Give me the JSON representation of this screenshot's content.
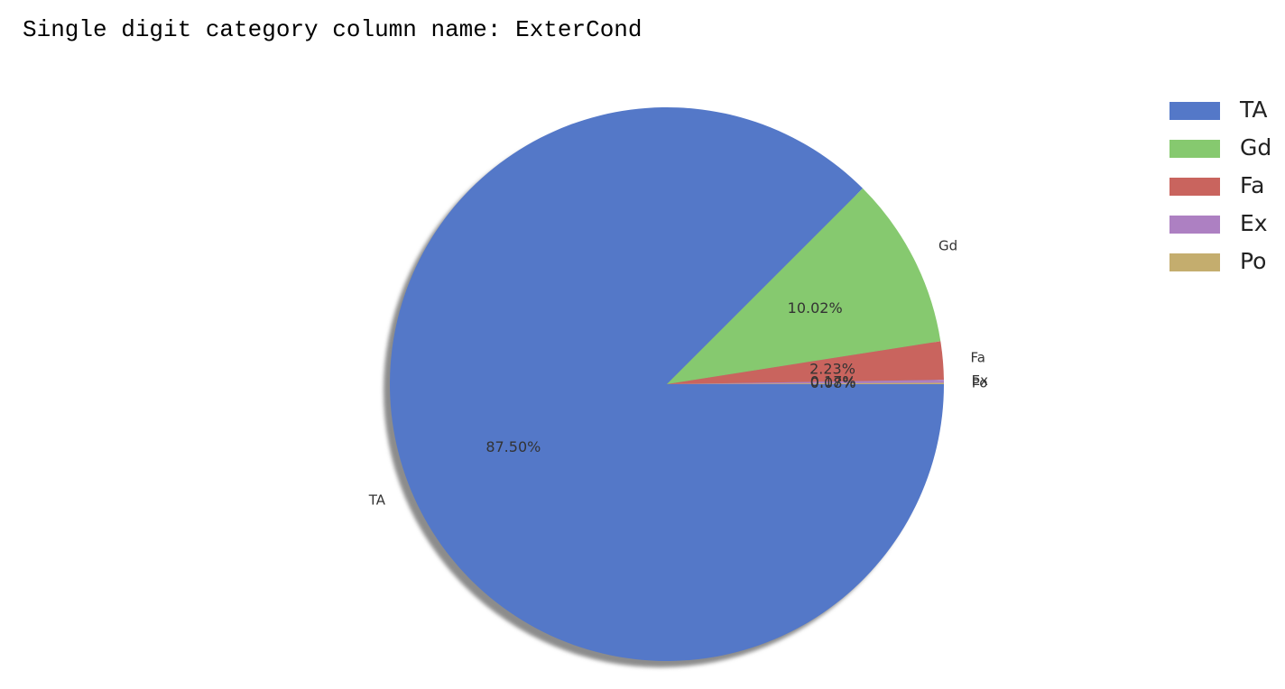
{
  "output": {
    "header_text": "Single digit category column name: ExterCond"
  },
  "chart_data": {
    "type": "pie",
    "labels": [
      "TA",
      "Gd",
      "Fa",
      "Ex",
      "Po"
    ],
    "values": [
      87.5,
      10.02,
      2.23,
      0.17,
      0.08
    ],
    "percent_labels": [
      "87.50%",
      "10.02%",
      "2.23%",
      "0.17%",
      "0.08%"
    ],
    "colors": [
      "#5478c8",
      "#86c96f",
      "#c9645e",
      "#ad80c2",
      "#c4ad6e"
    ],
    "start_angle_deg": 0,
    "direction": "clockwise",
    "shadow": true,
    "legend": {
      "placement": "right",
      "entries": [
        "TA",
        "Gd",
        "Fa",
        "Ex",
        "Po"
      ]
    }
  }
}
